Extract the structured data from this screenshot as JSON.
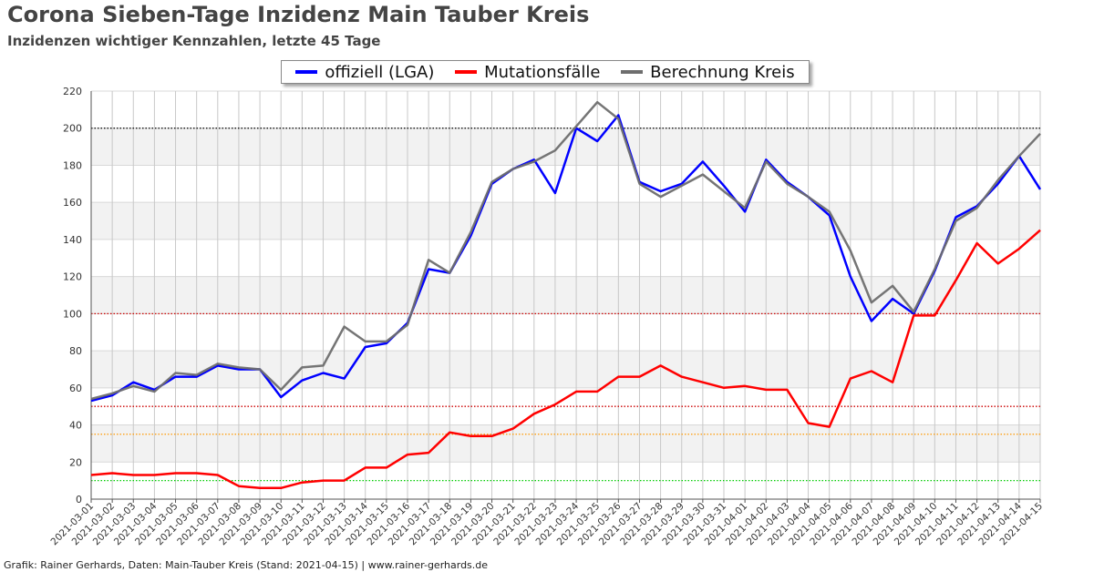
{
  "title": "Corona Sieben-Tage Inzidenz Main Tauber Kreis",
  "subtitle": "Inzidenzen wichtiger Kennzahlen, letzte 45 Tage",
  "footer": "Grafik: Rainer Gerhards, Daten: Main-Tauber Kreis (Stand: 2021-04-15) | www.rainer-gerhards.de",
  "chart_data": {
    "type": "line",
    "categories": [
      "2021-03-01",
      "2021-03-02",
      "2021-03-03",
      "2021-03-04",
      "2021-03-05",
      "2021-03-06",
      "2021-03-07",
      "2021-03-08",
      "2021-03-09",
      "2021-03-10",
      "2021-03-11",
      "2021-03-12",
      "2021-03-13",
      "2021-03-14",
      "2021-03-15",
      "2021-03-16",
      "2021-03-17",
      "2021-03-18",
      "2021-03-19",
      "2021-03-20",
      "2021-03-21",
      "2021-03-22",
      "2021-03-23",
      "2021-03-24",
      "2021-03-25",
      "2021-03-26",
      "2021-03-27",
      "2021-03-28",
      "2021-03-29",
      "2021-03-30",
      "2021-03-31",
      "2021-04-01",
      "2021-04-02",
      "2021-04-03",
      "2021-04-04",
      "2021-04-05",
      "2021-04-06",
      "2021-04-07",
      "2021-04-08",
      "2021-04-09",
      "2021-04-10",
      "2021-04-11",
      "2021-04-12",
      "2021-04-13",
      "2021-04-14",
      "2021-04-15"
    ],
    "ylim": [
      0,
      220
    ],
    "yticks": [
      0,
      20,
      40,
      60,
      80,
      100,
      120,
      140,
      160,
      180,
      200,
      220
    ],
    "grid": true,
    "legend_position": "top-center",
    "reference_lines": [
      {
        "value": 200,
        "color": "#000000"
      },
      {
        "value": 100,
        "color": "#cc0000"
      },
      {
        "value": 50,
        "color": "#cc0000"
      },
      {
        "value": 35,
        "color": "#ff9900"
      },
      {
        "value": 10,
        "color": "#00cc00"
      }
    ],
    "series": [
      {
        "name": "offiziell (LGA)",
        "color": "#0000ff",
        "values": [
          53,
          56,
          63,
          59,
          66,
          66,
          72,
          70,
          70,
          55,
          64,
          68,
          65,
          82,
          84,
          95,
          124,
          122,
          142,
          170,
          178,
          183,
          165,
          200,
          193,
          207,
          171,
          166,
          170,
          182,
          169,
          155,
          183,
          171,
          163,
          153,
          120,
          96,
          108,
          100,
          123,
          152,
          158,
          170,
          185,
          167
        ]
      },
      {
        "name": "Mutationsfälle",
        "color": "#ff0000",
        "values": [
          13,
          14,
          13,
          13,
          14,
          14,
          13,
          7,
          6,
          6,
          9,
          10,
          10,
          17,
          17,
          24,
          25,
          36,
          34,
          34,
          38,
          46,
          51,
          58,
          58,
          66,
          66,
          72,
          66,
          63,
          60,
          61,
          59,
          59,
          41,
          39,
          65,
          69,
          63,
          99,
          99,
          118,
          138,
          127,
          135,
          145
        ]
      },
      {
        "name": "Berechnung Kreis",
        "color": "#6e6e6e",
        "values": [
          54,
          57,
          61,
          58,
          68,
          67,
          73,
          71,
          70,
          59,
          71,
          72,
          93,
          85,
          85,
          94,
          129,
          122,
          144,
          171,
          178,
          182,
          188,
          201,
          214,
          205,
          170,
          163,
          169,
          175,
          166,
          157,
          182,
          170,
          163,
          155,
          134,
          106,
          115,
          101,
          124,
          150,
          157,
          172,
          185,
          197
        ]
      }
    ]
  }
}
